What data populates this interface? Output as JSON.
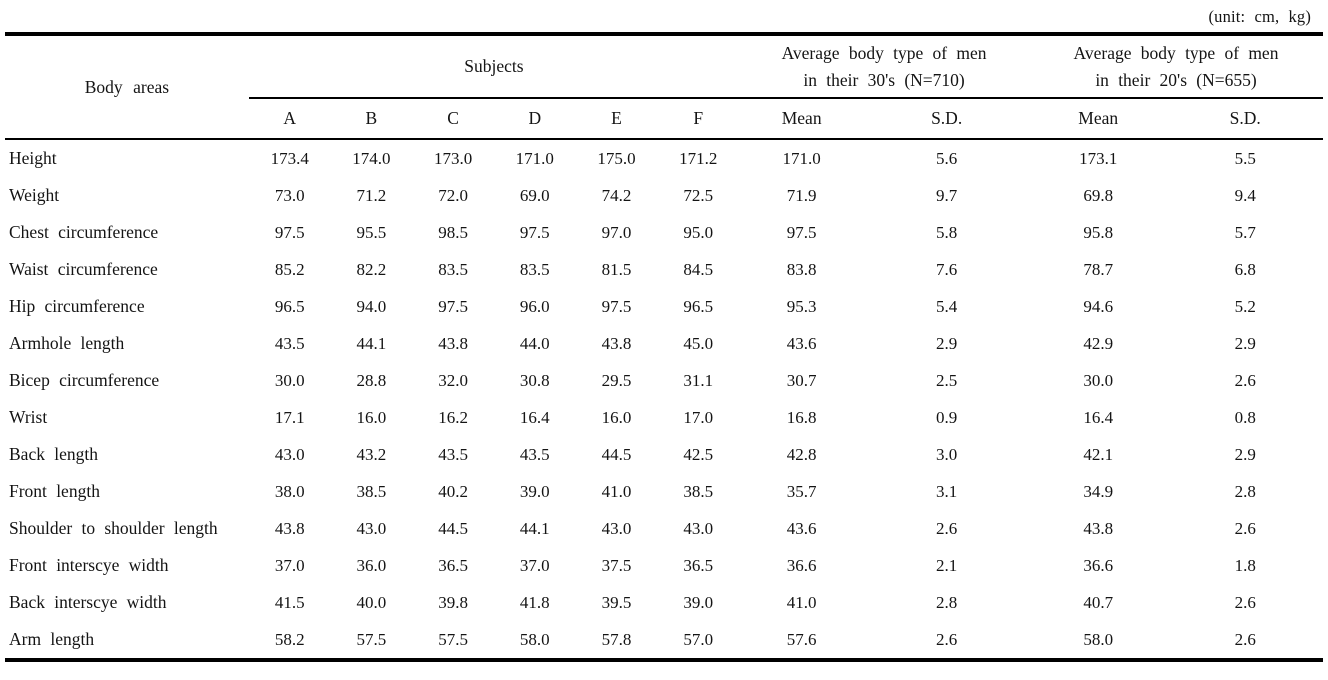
{
  "unit_note": "(unit: cm, kg)",
  "table": {
    "header": {
      "body_areas_label": "Body areas",
      "subjects_group_label": "Subjects",
      "group_30s": {
        "line1": "Average body type of men",
        "line2": "in their 30's (N=710)"
      },
      "group_20s": {
        "line1": "Average body type of men",
        "line2": "in their 20's (N=655)"
      },
      "subcolumns": [
        "A",
        "B",
        "C",
        "D",
        "E",
        "F",
        "Mean",
        "S.D.",
        "Mean",
        "S.D."
      ]
    },
    "rows": [
      {
        "label": "Height",
        "values": [
          "173.4",
          "174.0",
          "173.0",
          "171.0",
          "175.0",
          "171.2",
          "171.0",
          "5.6",
          "173.1",
          "5.5"
        ]
      },
      {
        "label": "Weight",
        "values": [
          "73.0",
          "71.2",
          "72.0",
          "69.0",
          "74.2",
          "72.5",
          "71.9",
          "9.7",
          "69.8",
          "9.4"
        ]
      },
      {
        "label": "Chest circumference",
        "values": [
          "97.5",
          "95.5",
          "98.5",
          "97.5",
          "97.0",
          "95.0",
          "97.5",
          "5.8",
          "95.8",
          "5.7"
        ]
      },
      {
        "label": "Waist circumference",
        "values": [
          "85.2",
          "82.2",
          "83.5",
          "83.5",
          "81.5",
          "84.5",
          "83.8",
          "7.6",
          "78.7",
          "6.8"
        ]
      },
      {
        "label": "Hip circumference",
        "values": [
          "96.5",
          "94.0",
          "97.5",
          "96.0",
          "97.5",
          "96.5",
          "95.3",
          "5.4",
          "94.6",
          "5.2"
        ]
      },
      {
        "label": "Armhole length",
        "values": [
          "43.5",
          "44.1",
          "43.8",
          "44.0",
          "43.8",
          "45.0",
          "43.6",
          "2.9",
          "42.9",
          "2.9"
        ]
      },
      {
        "label": "Bicep circumference",
        "values": [
          "30.0",
          "28.8",
          "32.0",
          "30.8",
          "29.5",
          "31.1",
          "30.7",
          "2.5",
          "30.0",
          "2.6"
        ]
      },
      {
        "label": "Wrist",
        "values": [
          "17.1",
          "16.0",
          "16.2",
          "16.4",
          "16.0",
          "17.0",
          "16.8",
          "0.9",
          "16.4",
          "0.8"
        ]
      },
      {
        "label": "Back length",
        "values": [
          "43.0",
          "43.2",
          "43.5",
          "43.5",
          "44.5",
          "42.5",
          "42.8",
          "3.0",
          "42.1",
          "2.9"
        ]
      },
      {
        "label": "Front length",
        "values": [
          "38.0",
          "38.5",
          "40.2",
          "39.0",
          "41.0",
          "38.5",
          "35.7",
          "3.1",
          "34.9",
          "2.8"
        ]
      },
      {
        "label": "Shoulder to shoulder length",
        "values": [
          "43.8",
          "43.0",
          "44.5",
          "44.1",
          "43.0",
          "43.0",
          "43.6",
          "2.6",
          "43.8",
          "2.6"
        ]
      },
      {
        "label": "Front interscye width",
        "values": [
          "37.0",
          "36.0",
          "36.5",
          "37.0",
          "37.5",
          "36.5",
          "36.6",
          "2.1",
          "36.6",
          "1.8"
        ]
      },
      {
        "label": "Back interscye width",
        "values": [
          "41.5",
          "40.0",
          "39.8",
          "41.8",
          "39.5",
          "39.0",
          "41.0",
          "2.8",
          "40.7",
          "2.6"
        ]
      },
      {
        "label": "Arm length",
        "values": [
          "58.2",
          "57.5",
          "57.5",
          "58.0",
          "57.8",
          "57.0",
          "57.6",
          "2.6",
          "58.0",
          "2.6"
        ]
      }
    ]
  }
}
